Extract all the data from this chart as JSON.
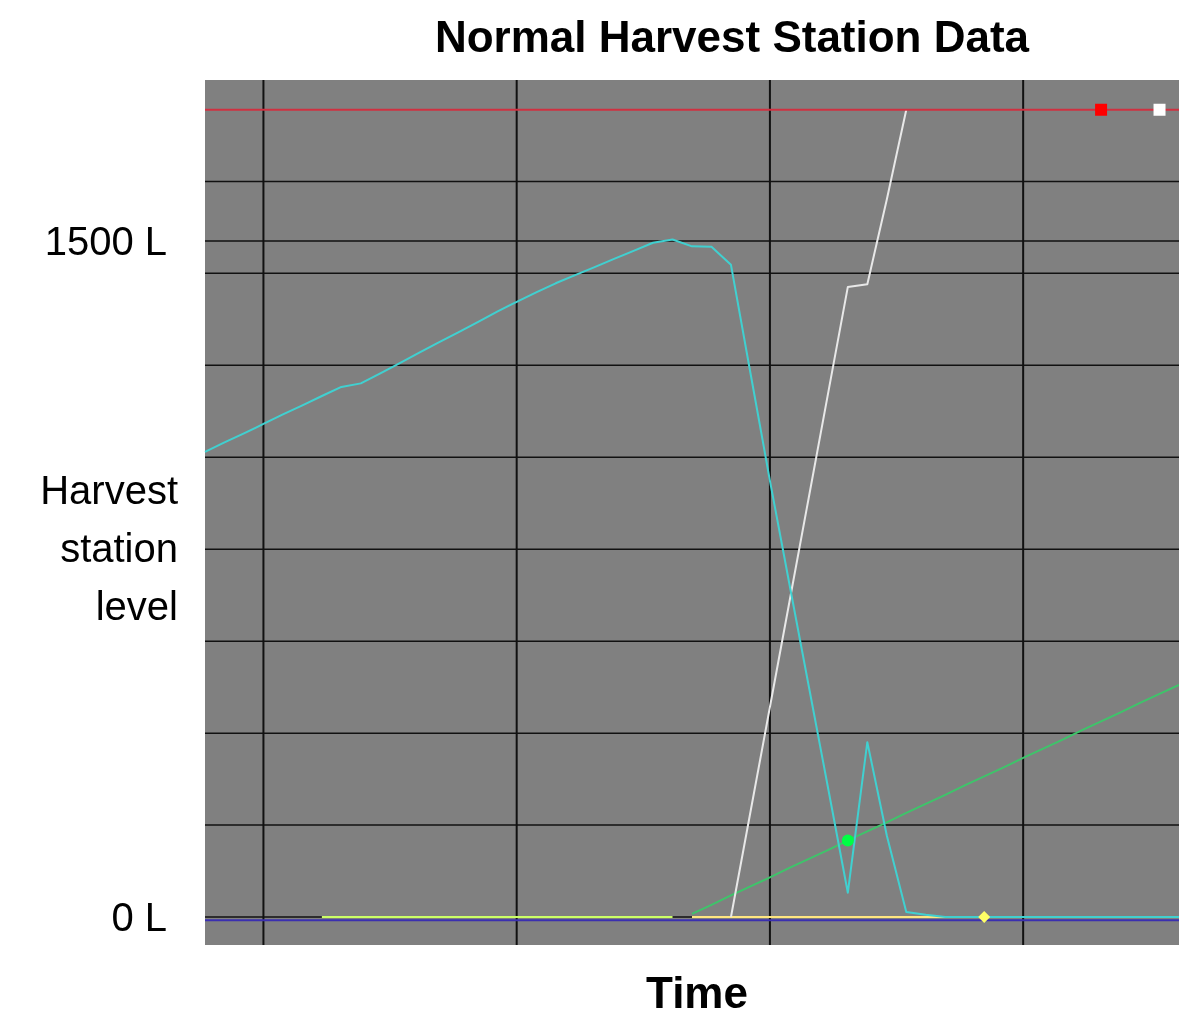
{
  "chart_data": {
    "type": "line",
    "title": "Normal Harvest Station Data",
    "xlabel": "Time",
    "ylabel": "Harvest station level",
    "categories": [
      null,
      null,
      null,
      null,
      null,
      null,
      null,
      null,
      null,
      null,
      null,
      null,
      null,
      null,
      null,
      null,
      null,
      null,
      null,
      null,
      null,
      null,
      null,
      null,
      null,
      null,
      null,
      null,
      null,
      null,
      null,
      null,
      null,
      null,
      null,
      null,
      null,
      null,
      null,
      null,
      null,
      null,
      null,
      null,
      null,
      null,
      null,
      null,
      null,
      null,
      null
    ],
    "ylim": [
      -62,
      1857
    ],
    "yticks": [
      {
        "value": 0,
        "label": "0 L"
      },
      {
        "value": 204,
        "label": null
      },
      {
        "value": 408,
        "label": null
      },
      {
        "value": 612,
        "label": null
      },
      {
        "value": 816,
        "label": null
      },
      {
        "value": 1020,
        "label": null
      },
      {
        "value": 1224,
        "label": null
      },
      {
        "value": 1428,
        "label": null
      },
      {
        "value": 1500,
        "label": "1500 L"
      },
      {
        "value": 1632,
        "label": null
      }
    ],
    "grid": true,
    "tick_labels": "y",
    "line_style": "solid",
    "marker": "none",
    "series": [
      {
        "color": "#3a2fb0",
        "values": [
          -7,
          -7,
          -7,
          -7,
          -7,
          -7,
          -7,
          -7,
          -7,
          -7,
          -7,
          -7,
          -7,
          -7,
          -7,
          -7,
          -7,
          -7,
          -7,
          -7,
          -7,
          -7,
          -7,
          -7,
          -7,
          -7,
          -7,
          -7,
          -7,
          -7,
          -7,
          -7,
          -7,
          -7,
          -7,
          -7,
          -7,
          -7,
          -7,
          -7,
          -7,
          -7,
          -7,
          -7,
          -7,
          -7,
          -7,
          -7,
          -7,
          -7,
          -7
        ]
      },
      {
        "color": "#ccff66",
        "values": [
          null,
          null,
          null,
          null,
          null,
          null,
          0,
          0,
          0,
          0,
          0,
          0,
          0,
          0,
          0,
          0,
          0,
          0,
          0,
          0,
          0,
          0,
          0,
          0,
          0,
          null,
          null,
          null,
          null,
          null,
          null,
          null,
          null,
          null,
          null,
          null,
          null,
          null,
          null,
          null,
          null,
          null,
          null,
          null,
          null,
          null,
          null,
          null,
          null,
          null,
          null
        ]
      },
      {
        "color": "#ffe680",
        "values": [
          null,
          null,
          null,
          null,
          null,
          null,
          null,
          null,
          null,
          null,
          null,
          null,
          null,
          null,
          null,
          null,
          null,
          null,
          null,
          null,
          null,
          null,
          null,
          null,
          null,
          0,
          0,
          0,
          0,
          0,
          0,
          0,
          0,
          0,
          0,
          0,
          0,
          0,
          0,
          0,
          0,
          0,
          null,
          null,
          null,
          null,
          null,
          null,
          null,
          null,
          null
        ]
      },
      {
        "color": "#3ec46a",
        "values": [
          null,
          null,
          null,
          null,
          null,
          null,
          null,
          null,
          null,
          null,
          null,
          null,
          null,
          null,
          null,
          null,
          null,
          null,
          null,
          null,
          null,
          null,
          null,
          null,
          null,
          7,
          27,
          48,
          68,
          88,
          109,
          129,
          149,
          170,
          190,
          210,
          231,
          251,
          271,
          292,
          312,
          332,
          353,
          373,
          393,
          414,
          434,
          454,
          475,
          495,
          515
        ]
      },
      {
        "color": "#e8e8e8",
        "values": [
          null,
          null,
          null,
          null,
          null,
          null,
          null,
          null,
          null,
          null,
          null,
          null,
          null,
          null,
          null,
          null,
          null,
          null,
          null,
          null,
          null,
          null,
          null,
          null,
          null,
          null,
          null,
          0,
          233,
          466,
          699,
          932,
          1165,
          1398,
          1404,
          1592,
          1791,
          null,
          null,
          null,
          null,
          null,
          null,
          null,
          null,
          null,
          null,
          null,
          null,
          null,
          null
        ]
      },
      {
        "color": "#d03040",
        "values": [
          1791,
          1791,
          1791,
          1791,
          1791,
          1791,
          1791,
          1791,
          1791,
          1791,
          1791,
          1791,
          1791,
          1791,
          1791,
          1791,
          1791,
          1791,
          1791,
          1791,
          1791,
          1791,
          1791,
          1791,
          1791,
          1791,
          1791,
          1791,
          1791,
          1791,
          1791,
          1791,
          1791,
          1791,
          1791,
          1791,
          1791,
          1791,
          1791,
          1791,
          1791,
          1791,
          1791,
          1791,
          1791,
          1791,
          1791,
          1791,
          1791,
          1791,
          1791
        ]
      },
      {
        "color": "#40d0d0",
        "values": [
          1032,
          1053,
          1073,
          1094,
          1115,
          1135,
          1156,
          1176,
          1184,
          1206,
          1229,
          1252,
          1275,
          1297,
          1320,
          1343,
          1365,
          1386,
          1406,
          1424,
          1442,
          1460,
          1478,
          1496,
          1503,
          1488,
          1487,
          1447,
          1207,
          968,
          739,
          511,
          283,
          54,
          388,
          181,
          11,
          5,
          0,
          0,
          0,
          0,
          0,
          0,
          0,
          0,
          0,
          0,
          0,
          0,
          0
        ]
      },
      {
        "type": "scatter",
        "marker": "circle",
        "color": "#00ff44",
        "values": [
          null,
          null,
          null,
          null,
          null,
          null,
          null,
          null,
          null,
          null,
          null,
          null,
          null,
          null,
          null,
          null,
          null,
          null,
          null,
          null,
          null,
          null,
          null,
          null,
          null,
          null,
          null,
          null,
          null,
          null,
          null,
          null,
          null,
          170,
          null,
          null,
          null,
          null,
          null,
          null,
          null,
          null,
          null,
          null,
          null,
          null,
          null,
          null,
          null,
          null,
          null
        ]
      },
      {
        "type": "scatter",
        "marker": "diamond",
        "color": "#ffff66",
        "values": [
          null,
          null,
          null,
          null,
          null,
          null,
          null,
          null,
          null,
          null,
          null,
          null,
          null,
          null,
          null,
          null,
          null,
          null,
          null,
          null,
          null,
          null,
          null,
          null,
          null,
          null,
          null,
          null,
          null,
          null,
          null,
          null,
          null,
          null,
          null,
          null,
          null,
          null,
          null,
          null,
          0,
          null,
          null,
          null,
          null,
          null,
          null,
          null,
          null,
          null,
          null
        ]
      },
      {
        "type": "scatter",
        "marker": "square",
        "color": "#ff0000",
        "values": [
          null,
          null,
          null,
          null,
          null,
          null,
          null,
          null,
          null,
          null,
          null,
          null,
          null,
          null,
          null,
          null,
          null,
          null,
          null,
          null,
          null,
          null,
          null,
          null,
          null,
          null,
          null,
          null,
          null,
          null,
          null,
          null,
          null,
          null,
          null,
          null,
          null,
          null,
          null,
          null,
          null,
          null,
          null,
          null,
          null,
          null,
          1791,
          null,
          null,
          null,
          null
        ]
      },
      {
        "type": "scatter",
        "marker": "square",
        "color": "#ffffff",
        "values": [
          null,
          null,
          null,
          null,
          null,
          null,
          null,
          null,
          null,
          null,
          null,
          null,
          null,
          null,
          null,
          null,
          null,
          null,
          null,
          null,
          null,
          null,
          null,
          null,
          null,
          null,
          null,
          null,
          null,
          null,
          null,
          null,
          null,
          null,
          null,
          null,
          null,
          null,
          null,
          null,
          null,
          null,
          null,
          null,
          null,
          null,
          null,
          null,
          null,
          1791,
          null
        ]
      }
    ]
  }
}
